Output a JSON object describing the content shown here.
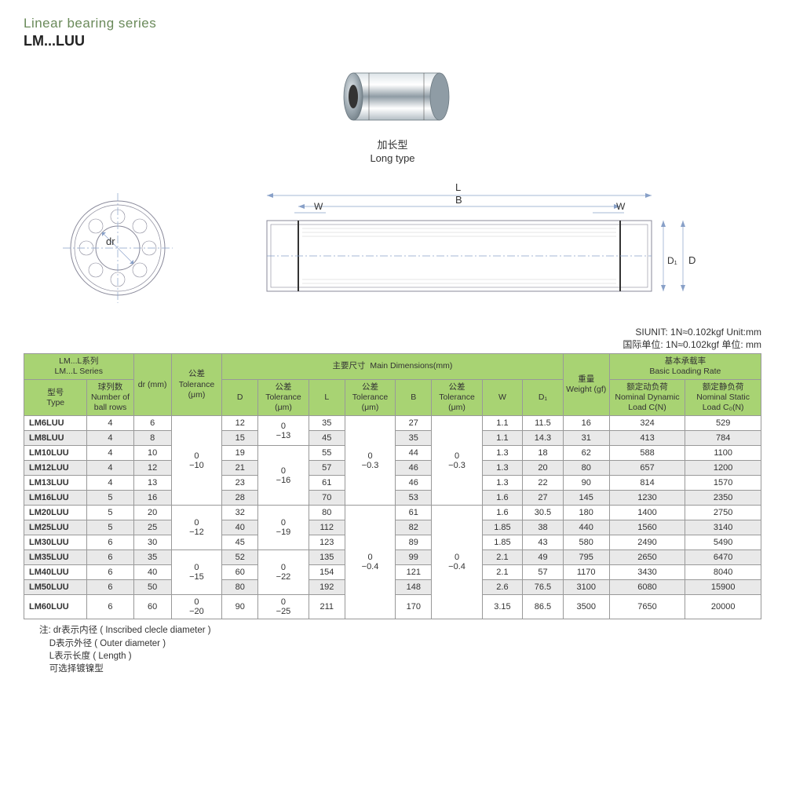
{
  "header": {
    "title": "Linear bearing series",
    "subtitle": "LM...LUU"
  },
  "product": {
    "caption_cn": "加长型",
    "caption_en": "Long type"
  },
  "diagram": {
    "labels": [
      "L",
      "B",
      "W",
      "W",
      "dr",
      "D₁",
      "D"
    ]
  },
  "unit_info": {
    "line1": "SIUNIT: 1N≈0.102kgf    Unit:mm",
    "line2": "国际单位: 1N≈0.102kgf  单位:  mm"
  },
  "table": {
    "header_colors": {
      "bg": "#a8d373",
      "border": "#999999"
    },
    "group_headers": {
      "series_cn": "LM...L系列",
      "series_en": "LM...L Series",
      "main_dim_cn": "主要尺寸",
      "main_dim_en": "Main Dimensions(mm)",
      "loading_cn": "基本承载率",
      "loading_en": "Basic Loading Rate"
    },
    "col_headers": {
      "type_cn": "型号",
      "type_en": "Type",
      "balls_cn": "球列数",
      "balls_en": "Number of ball rows",
      "dr": "dr (mm)",
      "tol1_cn": "公差",
      "tol1_en": "Tolerance (μm)",
      "D": "D",
      "tol2_cn": "公差",
      "tol2_en": "Tolerance (μm)",
      "L": "L",
      "tol3_cn": "公差",
      "tol3_en": "Tolerance (μm)",
      "B": "B",
      "tol4_cn": "公差",
      "tol4_en": "Tolerance (μm)",
      "W": "W",
      "D1": "D₁",
      "weight_cn": "重量",
      "weight_en": "Weight (gf)",
      "dyn_cn": "额定动负荷",
      "dyn_en": "Nominal Dynamic Load C(N)",
      "stat_cn": "额定静负荷",
      "stat_en": "Nominal Static Load C₀(N)"
    },
    "tolerances": {
      "dr_t": [
        "0\n−10",
        "0\n−12",
        "0\n−15",
        "0\n−20"
      ],
      "D_t": [
        "0\n−13",
        "0\n−16",
        "0\n−19",
        "0\n−22",
        "0\n−25"
      ],
      "L_t": [
        "0\n−0.3",
        "0\n−0.4"
      ],
      "B_t": [
        "0\n−0.3",
        "0\n−0.4"
      ]
    },
    "rows": [
      {
        "type": "LM6LUU",
        "balls": 4,
        "dr": 6,
        "D": 12,
        "L": 35,
        "B": 27,
        "W": 1.1,
        "D1": 11.5,
        "wt": 16,
        "dyn": 324,
        "stat": 529
      },
      {
        "type": "LM8LUU",
        "balls": 4,
        "dr": 8,
        "D": 15,
        "L": 45,
        "B": 35,
        "W": 1.1,
        "D1": 14.3,
        "wt": 31,
        "dyn": 413,
        "stat": 784
      },
      {
        "type": "LM10LUU",
        "balls": 4,
        "dr": 10,
        "D": 19,
        "L": 55,
        "B": 44,
        "W": 1.3,
        "D1": 18,
        "wt": 62,
        "dyn": 588,
        "stat": 1100
      },
      {
        "type": "LM12LUU",
        "balls": 4,
        "dr": 12,
        "D": 21,
        "L": 57,
        "B": 46,
        "W": 1.3,
        "D1": 20,
        "wt": 80,
        "dyn": 657,
        "stat": 1200
      },
      {
        "type": "LM13LUU",
        "balls": 4,
        "dr": 13,
        "D": 23,
        "L": 61,
        "B": 46,
        "W": 1.3,
        "D1": 22,
        "wt": 90,
        "dyn": 814,
        "stat": 1570
      },
      {
        "type": "LM16LUU",
        "balls": 5,
        "dr": 16,
        "D": 28,
        "L": 70,
        "B": 53,
        "W": 1.6,
        "D1": 27,
        "wt": 145,
        "dyn": 1230,
        "stat": 2350
      },
      {
        "type": "LM20LUU",
        "balls": 5,
        "dr": 20,
        "D": 32,
        "L": 80,
        "B": 61,
        "W": 1.6,
        "D1": 30.5,
        "wt": 180,
        "dyn": 1400,
        "stat": 2750
      },
      {
        "type": "LM25LUU",
        "balls": 5,
        "dr": 25,
        "D": 40,
        "L": 112,
        "B": 82,
        "W": 1.85,
        "D1": 38,
        "wt": 440,
        "dyn": 1560,
        "stat": 3140
      },
      {
        "type": "LM30LUU",
        "balls": 6,
        "dr": 30,
        "D": 45,
        "L": 123,
        "B": 89,
        "W": 1.85,
        "D1": 43,
        "wt": 580,
        "dyn": 2490,
        "stat": 5490
      },
      {
        "type": "LM35LUU",
        "balls": 6,
        "dr": 35,
        "D": 52,
        "L": 135,
        "B": 99,
        "W": 2.1,
        "D1": 49,
        "wt": 795,
        "dyn": 2650,
        "stat": 6470
      },
      {
        "type": "LM40LUU",
        "balls": 6,
        "dr": 40,
        "D": 60,
        "L": 154,
        "B": 121,
        "W": 2.1,
        "D1": 57,
        "wt": 1170,
        "dyn": 3430,
        "stat": 8040
      },
      {
        "type": "LM50LUU",
        "balls": 6,
        "dr": 50,
        "D": 80,
        "L": 192,
        "B": 148,
        "W": 2.6,
        "D1": 76.5,
        "wt": 3100,
        "dyn": 6080,
        "stat": 15900
      },
      {
        "type": "LM60LUU",
        "balls": 6,
        "dr": 60,
        "D": 90,
        "L": 211,
        "B": 170,
        "W": 3.15,
        "D1": 86.5,
        "wt": 3500,
        "dyn": 7650,
        "stat": 20000
      }
    ]
  },
  "footnotes": {
    "prefix": "注:",
    "lines": [
      "dr表示内径 ( Inscribed clecle diameter )",
      "D表示外径 ( Outer diameter )",
      "L表示长度 ( Length )",
      "可选择镀镍型"
    ]
  }
}
